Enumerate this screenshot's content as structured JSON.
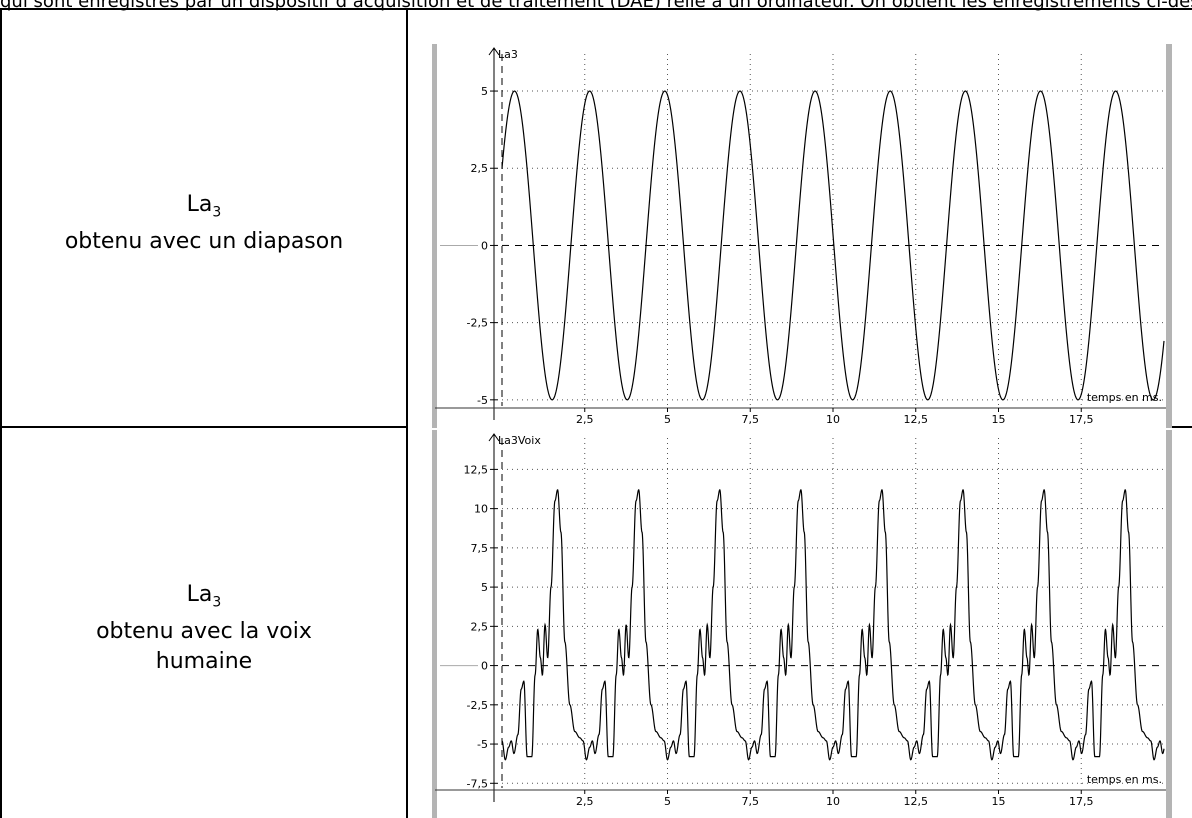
{
  "top_text": "qui sont enregistrés par un dispositif d’acquisition et de traitement (DAE) relié à un ordinateur. On obtient les enregistrements ci-dessous :",
  "rows": [
    {
      "note": "La",
      "note_sub": "3",
      "line2": "obtenu avec un diapason",
      "line3": ""
    },
    {
      "note": "La",
      "note_sub": "3",
      "line2": "obtenu avec la voix",
      "line3": "humaine"
    }
  ],
  "chart_data": [
    {
      "type": "line",
      "series_label": "La3",
      "xlabel": "temps en ms",
      "xlim": [
        0,
        20
      ],
      "ylim": [
        -5.2,
        6.2
      ],
      "x_ticks": [
        2.5,
        5,
        7.5,
        10,
        12.5,
        15,
        17.5
      ],
      "x_tick_labels": [
        "2,5",
        "5",
        "7,5",
        "10",
        "12,5",
        "15",
        "17,5"
      ],
      "y_ticks": [
        -5,
        -2.5,
        0,
        2.5,
        5
      ],
      "y_tick_labels": [
        "-5",
        "-2,5",
        "0",
        "2,5",
        "5"
      ],
      "grid": "dotted",
      "zero_line": "dashed",
      "model": {
        "kind": "sine",
        "amplitude": 5,
        "period_ms": 2.27,
        "phase_deg": 30
      },
      "color": "#000000"
    },
    {
      "type": "line",
      "series_label": "La3Voix",
      "xlabel": "temps en ms",
      "xlim": [
        0,
        20
      ],
      "ylim": [
        -7.8,
        14.5
      ],
      "x_ticks": [
        2.5,
        5,
        7.5,
        10,
        12.5,
        15,
        17.5
      ],
      "x_tick_labels": [
        "2,5",
        "5",
        "7,5",
        "10",
        "12,5",
        "15",
        "17,5"
      ],
      "y_ticks": [
        -7.5,
        -5,
        -2.5,
        0,
        2.5,
        5,
        7.5,
        10,
        12.5
      ],
      "y_tick_labels": [
        "-7,5",
        "-5",
        "-2,5",
        "0",
        "2,5",
        "5",
        "7,5",
        "10",
        "12,5"
      ],
      "grid": "dotted",
      "zero_line": "dashed",
      "period_ms": 2.45,
      "waveform_period_points": [
        [
          0.0,
          -4.8
        ],
        [
          0.1,
          -6.0
        ],
        [
          0.2,
          -5.2
        ],
        [
          0.28,
          -4.8
        ],
        [
          0.36,
          -5.6
        ],
        [
          0.48,
          -4.4
        ],
        [
          0.58,
          -1.5
        ],
        [
          0.66,
          -1.0
        ],
        [
          0.76,
          -5.8
        ],
        [
          0.9,
          -5.8
        ],
        [
          1.0,
          -0.6
        ],
        [
          1.08,
          2.3
        ],
        [
          1.16,
          0.5
        ],
        [
          1.22,
          -0.6
        ],
        [
          1.3,
          2.6
        ],
        [
          1.38,
          0.5
        ],
        [
          1.48,
          5.0
        ],
        [
          1.6,
          10.5
        ],
        [
          1.68,
          11.2
        ],
        [
          1.78,
          8.5
        ],
        [
          1.9,
          1.5
        ],
        [
          2.05,
          -2.5
        ],
        [
          2.2,
          -4.2
        ],
        [
          2.35,
          -4.6
        ],
        [
          2.45,
          -4.8
        ]
      ],
      "first_peak_ms": 1.68,
      "color": "#000000"
    }
  ]
}
